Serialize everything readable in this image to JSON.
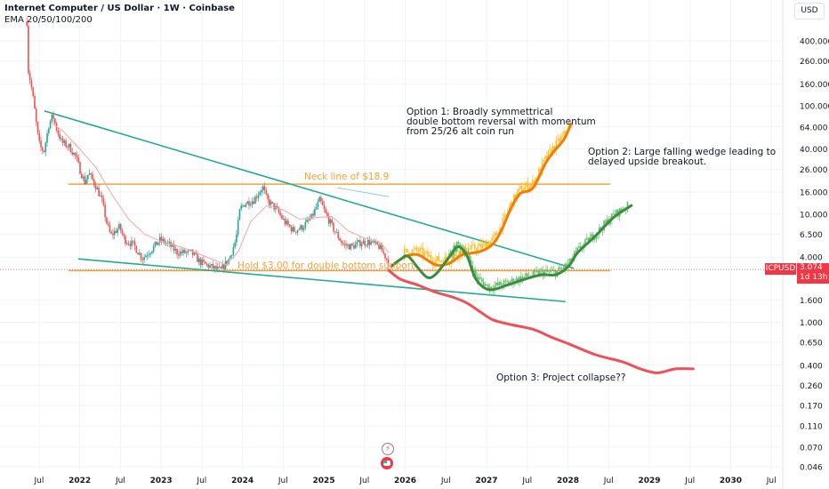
{
  "header": {
    "title": "Internet Computer / US Dollar · 1W · Coinbase",
    "indicator": "EMA 20/50/100/200"
  },
  "price_axis": {
    "currency_button": "USD",
    "symbol_label": "ICPUSD",
    "last_price": "3.074",
    "countdown": "1d 13h"
  },
  "annotations": {
    "option1": [
      "Option 1: Broadly symmettrical",
      "double bottom reversal with momentum",
      "from 25/26 alt coin run"
    ],
    "option2": [
      "Option 2: Large falling wedge leading to",
      "delayed upside breakout."
    ],
    "option3": "Option 3: Project collapse??",
    "neckline": "Neck line of $18.9",
    "support": "Hold $3.00 for double bottom support"
  },
  "colors": {
    "up": "#26a69a",
    "down": "#ef5350",
    "ema": "#f7a6a6",
    "trendline": "#22ab94",
    "level": "#f7a33b",
    "option1_line": "#f57c00",
    "option1_bars": "#fbbf2f",
    "option2_line": "#388e3c",
    "option2_bars": "#66bb6a",
    "option3_line": "#f0505a",
    "price_tag": "#f23645"
  },
  "chart_data": {
    "type": "candlestick",
    "title": "Internet Computer / US Dollar · 1W · Coinbase",
    "yscale": "log",
    "ylim": [
      0.046,
      400
    ],
    "xlim": [
      2021.02,
      2030.64
    ],
    "grid": true,
    "y_ticks": [
      "400.000",
      "260.000",
      "160.000",
      "100.000",
      "64.000",
      "40.000",
      "26.000",
      "16.000",
      "10.000",
      "6.500",
      "4.000",
      "1.600",
      "1.000",
      "0.650",
      "0.400",
      "0.260",
      "0.170",
      "0.110",
      "0.070",
      "0.046"
    ],
    "x_ticks": [
      {
        "t": 2021.5,
        "label": "Jul"
      },
      {
        "t": 2022.0,
        "label": "2022"
      },
      {
        "t": 2022.5,
        "label": "Jul"
      },
      {
        "t": 2023.0,
        "label": "2023"
      },
      {
        "t": 2023.5,
        "label": "Jul"
      },
      {
        "t": 2024.0,
        "label": "2024"
      },
      {
        "t": 2024.5,
        "label": "Jul"
      },
      {
        "t": 2025.0,
        "label": "2025"
      },
      {
        "t": 2025.5,
        "label": "Jul"
      },
      {
        "t": 2026.0,
        "label": "2026"
      },
      {
        "t": 2026.5,
        "label": "Jul"
      },
      {
        "t": 2027.0,
        "label": "2027"
      },
      {
        "t": 2027.5,
        "label": "Jul"
      },
      {
        "t": 2028.0,
        "label": "2028"
      },
      {
        "t": 2028.5,
        "label": "Jul"
      },
      {
        "t": 2029.0,
        "label": "2029"
      },
      {
        "t": 2029.5,
        "label": "Jul"
      },
      {
        "t": 2030.0,
        "label": "2030"
      },
      {
        "t": 2030.5,
        "label": "Jul"
      }
    ],
    "last_price": 3.074,
    "price_history": [
      [
        2021.35,
        600
      ],
      [
        2021.36,
        231
      ],
      [
        2021.41,
        144
      ],
      [
        2021.44,
        100
      ],
      [
        2021.48,
        56
      ],
      [
        2021.51,
        42
      ],
      [
        2021.56,
        38
      ],
      [
        2021.62,
        67
      ],
      [
        2021.67,
        82
      ],
      [
        2021.71,
        63
      ],
      [
        2021.78,
        46
      ],
      [
        2021.87,
        42
      ],
      [
        2021.95,
        34
      ],
      [
        2022.0,
        26
      ],
      [
        2022.06,
        19.7
      ],
      [
        2022.11,
        24
      ],
      [
        2022.2,
        18
      ],
      [
        2022.27,
        13.5
      ],
      [
        2022.33,
        8.4
      ],
      [
        2022.38,
        6.3
      ],
      [
        2022.49,
        7.6
      ],
      [
        2022.55,
        5.8
      ],
      [
        2022.66,
        5.2
      ],
      [
        2022.77,
        3.9
      ],
      [
        2022.88,
        4.7
      ],
      [
        2022.99,
        5.8
      ],
      [
        2023.1,
        5.2
      ],
      [
        2023.2,
        4.4
      ],
      [
        2023.37,
        4.4
      ],
      [
        2023.48,
        3.6
      ],
      [
        2023.59,
        3.3
      ],
      [
        2023.73,
        3.0
      ],
      [
        2023.84,
        3.9
      ],
      [
        2023.92,
        5.8
      ],
      [
        2023.97,
        11.2
      ],
      [
        2024.03,
        12.6
      ],
      [
        2024.14,
        13.5
      ],
      [
        2024.25,
        18
      ],
      [
        2024.3,
        13.5
      ],
      [
        2024.41,
        11.2
      ],
      [
        2024.52,
        8.4
      ],
      [
        2024.63,
        7.0
      ],
      [
        2024.74,
        7.6
      ],
      [
        2024.85,
        9.3
      ],
      [
        2024.95,
        13.5
      ],
      [
        2025.02,
        10.1
      ],
      [
        2025.13,
        7.0
      ],
      [
        2025.24,
        5.2
      ],
      [
        2025.35,
        5.0
      ],
      [
        2025.46,
        5.5
      ],
      [
        2025.57,
        5.5
      ],
      [
        2025.68,
        5.0
      ],
      [
        2025.77,
        3.9
      ],
      [
        2025.8,
        3.3
      ]
    ],
    "ema20": [
      [
        2021.65,
        70
      ],
      [
        2021.8,
        58
      ],
      [
        2022.0,
        40
      ],
      [
        2022.2,
        27
      ],
      [
        2022.4,
        15
      ],
      [
        2022.6,
        9
      ],
      [
        2022.8,
        6.5
      ],
      [
        2023.0,
        5.6
      ],
      [
        2023.3,
        4.8
      ],
      [
        2023.6,
        3.9
      ],
      [
        2023.8,
        3.4
      ],
      [
        2023.95,
        4.5
      ],
      [
        2024.1,
        8.5
      ],
      [
        2024.3,
        12
      ],
      [
        2024.5,
        11
      ],
      [
        2024.7,
        9
      ],
      [
        2024.9,
        9.3
      ],
      [
        2025.1,
        9.5
      ],
      [
        2025.3,
        7
      ],
      [
        2025.5,
        6
      ],
      [
        2025.7,
        5.4
      ],
      [
        2025.8,
        4.4
      ]
    ],
    "levels": [
      {
        "name": "Neck line of $18.9",
        "price": 18.9,
        "from": 2021.86,
        "to": 2028.52
      },
      {
        "name": "Hold $3.00 for double bottom support",
        "price": 3.0,
        "from": 2021.86,
        "to": 2028.52
      }
    ],
    "trendlines": [
      {
        "name": "wedge-upper",
        "points": [
          [
            2021.565,
            90
          ],
          [
            2028.07,
            3.15
          ]
        ]
      },
      {
        "name": "wedge-lower",
        "points": [
          [
            2021.98,
            3.85
          ],
          [
            2027.97,
            1.55
          ]
        ]
      },
      {
        "name": "neckline-slope",
        "points": [
          [
            2025.17,
            17.5
          ],
          [
            2025.8,
            14.5
          ]
        ]
      }
    ],
    "series": [
      {
        "name": "Option 1",
        "points": [
          [
            2025.83,
            3.3
          ],
          [
            2025.99,
            4.0
          ],
          [
            2026.16,
            4.2
          ],
          [
            2026.37,
            3.4
          ],
          [
            2026.54,
            3.5
          ],
          [
            2026.7,
            4.2
          ],
          [
            2026.92,
            4.5
          ],
          [
            2027.08,
            5.3
          ],
          [
            2027.19,
            7.3
          ],
          [
            2027.3,
            11.3
          ],
          [
            2027.41,
            15.4
          ],
          [
            2027.57,
            17.5
          ],
          [
            2027.73,
            30
          ],
          [
            2027.84,
            39
          ],
          [
            2027.95,
            49
          ],
          [
            2028.04,
            68
          ]
        ]
      },
      {
        "name": "Option 2",
        "points": [
          [
            2025.83,
            3.3
          ],
          [
            2025.94,
            3.8
          ],
          [
            2026.03,
            4.1
          ],
          [
            2026.14,
            3.3
          ],
          [
            2026.27,
            2.6
          ],
          [
            2026.38,
            2.8
          ],
          [
            2026.54,
            4.0
          ],
          [
            2026.65,
            5.0
          ],
          [
            2026.76,
            4.1
          ],
          [
            2026.87,
            2.5
          ],
          [
            2027.03,
            2.0
          ],
          [
            2027.25,
            2.2
          ],
          [
            2027.47,
            2.5
          ],
          [
            2027.68,
            2.75
          ],
          [
            2027.85,
            2.75
          ],
          [
            2028.01,
            3.3
          ],
          [
            2028.12,
            4.4
          ],
          [
            2028.34,
            6.3
          ],
          [
            2028.56,
            9.3
          ],
          [
            2028.78,
            12
          ]
        ]
      },
      {
        "name": "Option 3",
        "points": [
          [
            2025.8,
            3.0
          ],
          [
            2025.94,
            2.5
          ],
          [
            2026.16,
            2.2
          ],
          [
            2026.37,
            1.9
          ],
          [
            2026.59,
            1.7
          ],
          [
            2026.76,
            1.5
          ],
          [
            2026.92,
            1.25
          ],
          [
            2027.08,
            1.05
          ],
          [
            2027.3,
            0.95
          ],
          [
            2027.57,
            0.86
          ],
          [
            2027.79,
            0.73
          ],
          [
            2028.01,
            0.63
          ],
          [
            2028.34,
            0.5
          ],
          [
            2028.67,
            0.43
          ],
          [
            2028.89,
            0.37
          ],
          [
            2029.1,
            0.34
          ],
          [
            2029.32,
            0.37
          ],
          [
            2029.54,
            0.37
          ]
        ]
      }
    ]
  }
}
